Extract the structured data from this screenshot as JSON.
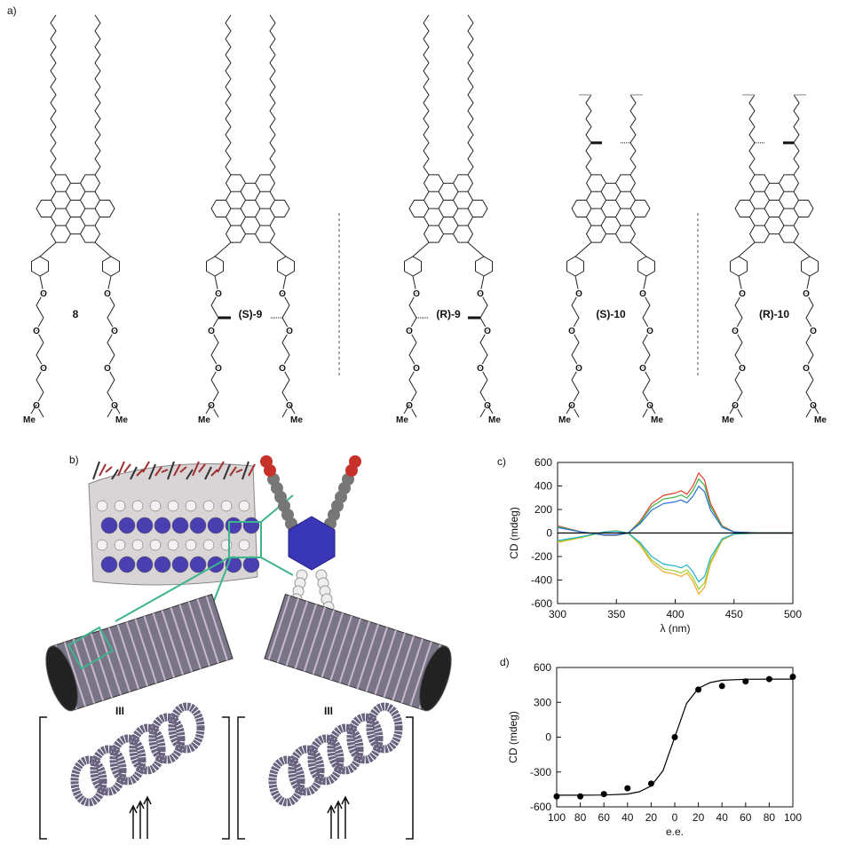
{
  "panel_labels": [
    "a)",
    "b)",
    "c)",
    "d)"
  ],
  "structures": [
    "8",
    "(S)-9",
    "(R)-9",
    "(S)-10",
    "(R)-10"
  ],
  "atom_labels": {
    "oxygen": "O",
    "methyl": "Me"
  },
  "panel_b": {
    "stack_symbol": "III"
  },
  "chart_data": [
    {
      "type": "line",
      "xlabel": "λ (nm)",
      "ylabel": "CD (mdeg)",
      "x": [
        300,
        320,
        340,
        350,
        360,
        370,
        380,
        390,
        400,
        405,
        410,
        415,
        420,
        425,
        430,
        440,
        450,
        470,
        500
      ],
      "xlim": [
        300,
        500
      ],
      "ylim": [
        -600,
        600
      ],
      "xticks": [
        300,
        350,
        400,
        450,
        500
      ],
      "yticks": [
        -600,
        -400,
        -200,
        0,
        200,
        400,
        600
      ],
      "series": [
        {
          "color": "#e8402a",
          "values": [
            60,
            10,
            -20,
            -20,
            0,
            100,
            250,
            320,
            340,
            360,
            330,
            400,
            510,
            450,
            250,
            60,
            10,
            0,
            0
          ]
        },
        {
          "color": "#3cb44b",
          "values": [
            54,
            9,
            -18,
            -18,
            0,
            90,
            225,
            288,
            306,
            324,
            297,
            360,
            459,
            405,
            225,
            54,
            9,
            0,
            0
          ]
        },
        {
          "color": "#2a6fd6",
          "values": [
            47,
            8,
            -16,
            -16,
            0,
            78,
            195,
            250,
            265,
            281,
            257,
            312,
            398,
            351,
            195,
            47,
            8,
            0,
            0
          ]
        },
        {
          "color": "#f5a623",
          "values": [
            -80,
            -40,
            10,
            20,
            0,
            -100,
            -250,
            -330,
            -350,
            -370,
            -340,
            -410,
            -520,
            -460,
            -260,
            -60,
            -10,
            0,
            0
          ]
        },
        {
          "color": "#9acd32",
          "values": [
            -74,
            -37,
            9,
            18,
            0,
            -92,
            -230,
            -304,
            -322,
            -340,
            -313,
            -377,
            -478,
            -423,
            -239,
            -55,
            -9,
            0,
            0
          ]
        },
        {
          "color": "#20b2c8",
          "values": [
            -64,
            -32,
            8,
            16,
            0,
            -80,
            -200,
            -264,
            -280,
            -296,
            -272,
            -328,
            -416,
            -368,
            -208,
            -48,
            -8,
            0,
            0
          ]
        },
        {
          "color": "#000000",
          "values": [
            0,
            0,
            0,
            0,
            0,
            0,
            0,
            0,
            0,
            0,
            0,
            0,
            0,
            0,
            0,
            0,
            0,
            0,
            0
          ]
        }
      ]
    },
    {
      "type": "scatter",
      "xlabel": "e.e.",
      "ylabel": "CD (mdeg)",
      "xlim": [
        -100,
        100
      ],
      "ylim": [
        -600,
        600
      ],
      "xticks": [
        {
          "value": -100,
          "label": "100"
        },
        {
          "value": -80,
          "label": "80"
        },
        {
          "value": -60,
          "label": "60"
        },
        {
          "value": -40,
          "label": "40"
        },
        {
          "value": -20,
          "label": "20"
        },
        0,
        20,
        40,
        60,
        80,
        100
      ],
      "yticks": [
        -600,
        -300,
        0,
        300,
        600
      ],
      "series": [
        {
          "mode": "markers",
          "color": "#000000",
          "x": [
            -100,
            -80,
            -60,
            -40,
            -20,
            0,
            20,
            40,
            60,
            80,
            100
          ],
          "values": [
            -510,
            -510,
            -490,
            -440,
            -400,
            0,
            410,
            440,
            480,
            500,
            520
          ]
        },
        {
          "mode": "line",
          "color": "#000000",
          "x": [
            -100,
            -80,
            -60,
            -40,
            -30,
            -20,
            -10,
            0,
            10,
            20,
            30,
            40,
            60,
            80,
            100
          ],
          "values": [
            -500,
            -500,
            -498,
            -490,
            -470,
            -420,
            -290,
            0,
            290,
            420,
            470,
            490,
            498,
            500,
            500
          ]
        }
      ]
    }
  ]
}
